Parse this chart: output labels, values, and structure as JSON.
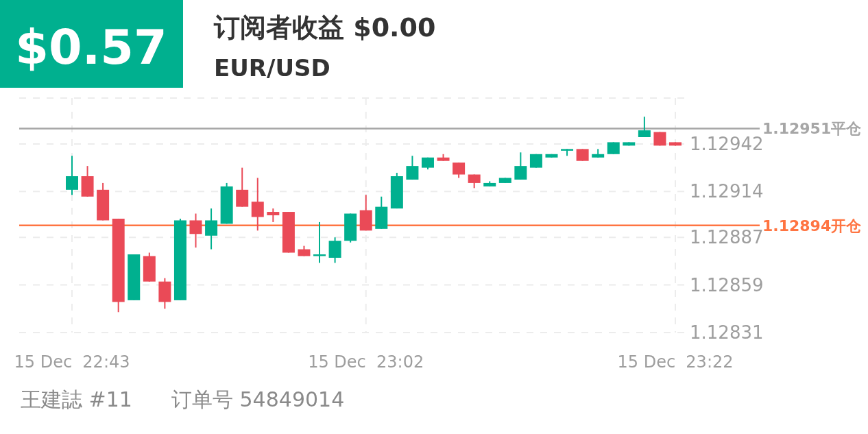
{
  "chart_data": {
    "type": "candlestick",
    "title": "订阅者收益 $0.00",
    "subtitle": "EUR/USD",
    "annotations": [
      "$0.57",
      "王建誌 #11",
      "订单号 54849014"
    ],
    "categories": [
      "15 Dec  22:43",
      null,
      null,
      null,
      null,
      null,
      null,
      null,
      null,
      null,
      null,
      null,
      null,
      null,
      null,
      null,
      null,
      null,
      null,
      "15 Dec  23:02",
      null,
      null,
      null,
      null,
      null,
      null,
      null,
      null,
      null,
      null,
      null,
      null,
      null,
      null,
      null,
      null,
      null,
      null,
      null,
      "15 Dec  23:22"
    ],
    "ohlc": [
      [
        1.12915,
        1.12935,
        1.12912,
        1.12923
      ],
      [
        1.12923,
        1.12929,
        1.12911,
        1.12911
      ],
      [
        1.12915,
        1.12919,
        1.12897,
        1.12897
      ],
      [
        1.12898,
        1.12898,
        1.12843,
        1.12849
      ],
      [
        1.1285,
        1.12877,
        1.1285,
        1.12877
      ],
      [
        1.12876,
        1.12878,
        1.12861,
        1.12861
      ],
      [
        1.12861,
        1.12863,
        1.12845,
        1.12849
      ],
      [
        1.1285,
        1.12898,
        1.1285,
        1.12897
      ],
      [
        1.12897,
        1.12901,
        1.12881,
        1.12889
      ],
      [
        1.12888,
        1.12904,
        1.1288,
        1.12897
      ],
      [
        1.12895,
        1.12919,
        1.12895,
        1.12917
      ],
      [
        1.12915,
        1.12928,
        1.12905,
        1.12905
      ],
      [
        1.12908,
        1.12922,
        1.12891,
        1.12899
      ],
      [
        1.12902,
        1.12904,
        1.12896,
        1.129
      ],
      [
        1.12902,
        1.12902,
        1.12878,
        1.12878
      ],
      [
        1.1288,
        1.12882,
        1.12876,
        1.12876
      ],
      [
        1.12876,
        1.12896,
        1.12872,
        1.12877
      ],
      [
        1.12875,
        1.12887,
        1.12872,
        1.12885
      ],
      [
        1.12885,
        1.12901,
        1.12884,
        1.12901
      ],
      [
        1.12903,
        1.12912,
        1.12891,
        1.12891
      ],
      [
        1.12892,
        1.12911,
        1.12892,
        1.12905
      ],
      [
        1.12904,
        1.12925,
        1.12904,
        1.12923
      ],
      [
        1.12921,
        1.12935,
        1.12921,
        1.12929
      ],
      [
        1.12928,
        1.12934,
        1.12927,
        1.12934
      ],
      [
        1.12934,
        1.12936,
        1.12932,
        1.12932
      ],
      [
        1.12931,
        1.12931,
        1.12922,
        1.12924
      ],
      [
        1.12924,
        1.12924,
        1.12916,
        1.12919
      ],
      [
        1.12917,
        1.1292,
        1.12917,
        1.12919
      ],
      [
        1.12919,
        1.12922,
        1.12919,
        1.12922
      ],
      [
        1.12921,
        1.12937,
        1.12921,
        1.12929
      ],
      [
        1.12928,
        1.12936,
        1.12928,
        1.12936
      ],
      [
        1.12934,
        1.12936,
        1.12934,
        1.12936
      ],
      [
        1.12938,
        1.12939,
        1.12935,
        1.12939
      ],
      [
        1.12939,
        1.12939,
        1.12932,
        1.12932
      ],
      [
        1.12934,
        1.12939,
        1.12934,
        1.12936
      ],
      [
        1.12936,
        1.12943,
        1.12936,
        1.12943
      ],
      [
        1.12941,
        1.12943,
        1.12941,
        1.12943
      ],
      [
        1.12946,
        1.12958,
        1.12946,
        1.1295
      ],
      [
        1.12949,
        1.12949,
        1.12941,
        1.12941
      ],
      [
        1.12943,
        1.12943,
        1.12941,
        1.12941
      ]
    ],
    "colors": [
      "#00b08f",
      "#ea4a57",
      "#ea4a57",
      "#ea4a57",
      "#00b08f",
      "#ea4a57",
      "#ea4a57",
      "#00b08f",
      "#ea4a57",
      "#00b08f",
      "#00b08f",
      "#ea4a57",
      "#ea4a57",
      "#ea4a57",
      "#ea4a57",
      "#ea4a57",
      "#00b08f",
      "#00b08f",
      "#00b08f",
      "#ea4a57",
      "#00b08f",
      "#00b08f",
      "#00b08f",
      "#00b08f",
      "#ea4a57",
      "#ea4a57",
      "#ea4a57",
      "#00b08f",
      "#00b08f",
      "#00b08f",
      "#00b08f",
      "#00b08f",
      "#00b08f",
      "#ea4a57",
      "#00b08f",
      "#00b08f",
      "#00b08f",
      "#00b08f",
      "#ea4a57",
      "#ea4a57"
    ],
    "ylim": [
      1.12831,
      1.12969
    ],
    "yticks": [
      1.12831,
      1.12859,
      1.12887,
      1.12914,
      1.12942,
      {
        "value": 1.12969,
        "label": null
      }
    ],
    "grid": true,
    "ref_lines": [
      {
        "axis": "y",
        "value": 1.12951,
        "label": "1.12951平仓",
        "color": "#a6a6a6"
      },
      {
        "axis": "y",
        "value": 1.12894,
        "label": "1.12894开仓",
        "color": "#ff7441"
      }
    ]
  }
}
